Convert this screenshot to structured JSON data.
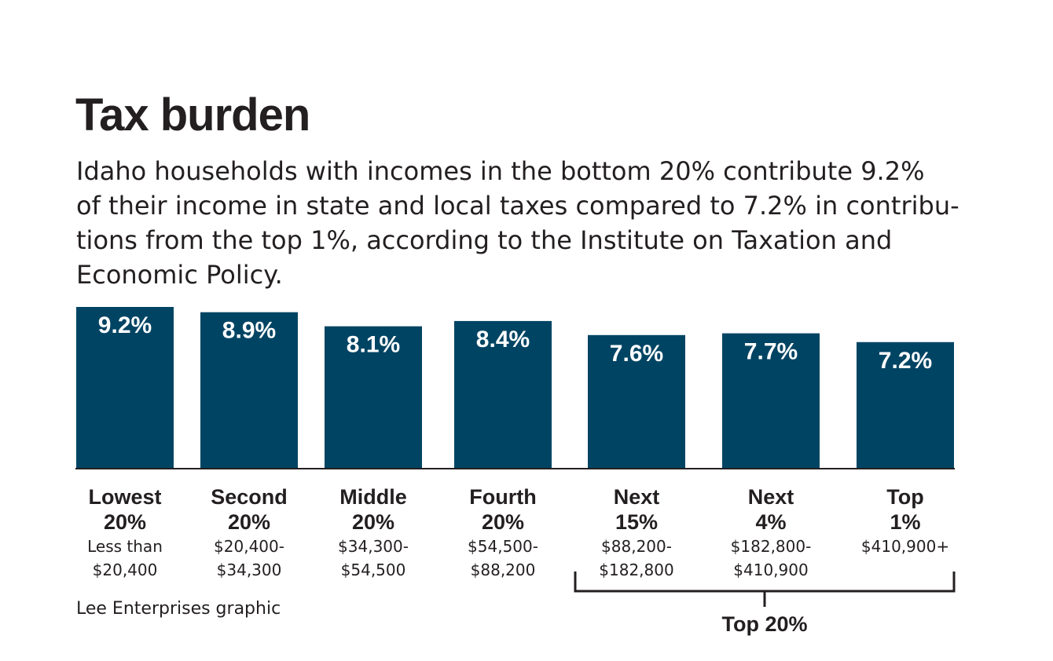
{
  "chart_data": {
    "type": "bar",
    "title": "Tax burden",
    "subtitle_lines": [
      "Idaho households with incomes in the bottom 20% contribute 9.2%",
      "of their income in state and local taxes compared to 7.2% in contribu-",
      "tions from the top 1%, according to the Institute on Taxation and",
      "Economic Policy."
    ],
    "categories": [
      {
        "line1": "Lowest",
        "line2": "20%",
        "range1": "Less than",
        "range2": "$20,400"
      },
      {
        "line1": "Second",
        "line2": "20%",
        "range1": "$20,400-",
        "range2": "$34,300"
      },
      {
        "line1": "Middle",
        "line2": "20%",
        "range1": "$34,300-",
        "range2": "$54,500"
      },
      {
        "line1": "Fourth",
        "line2": "20%",
        "range1": "$54,500-",
        "range2": "$88,200"
      },
      {
        "line1": "Next",
        "line2": "15%",
        "range1": "$88,200-",
        "range2": "$182,800"
      },
      {
        "line1": "Next",
        "line2": "4%",
        "range1": "$182,800-",
        "range2": "$410,900"
      },
      {
        "line1": "Top",
        "line2": "1%",
        "range1": "$410,900+",
        "range2": ""
      }
    ],
    "values": [
      9.2,
      8.9,
      8.1,
      8.4,
      7.6,
      7.7,
      7.2
    ],
    "value_labels": [
      "9.2%",
      "8.9%",
      "8.1%",
      "8.4%",
      "7.6%",
      "7.7%",
      "7.2%"
    ],
    "bar_color": "#004463",
    "ylim": [
      0,
      9.2
    ],
    "grid": false,
    "legend": "none",
    "group_bracket": {
      "label": "Top 20%",
      "from_index": 4,
      "to_index": 6
    },
    "credit": "Lee Enterprises graphic"
  }
}
